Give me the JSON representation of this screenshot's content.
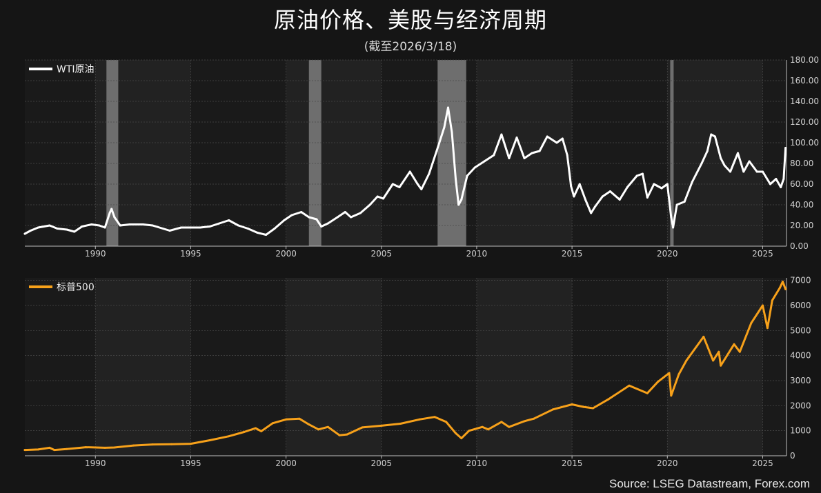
{
  "header": {
    "title": "原油价格、美股与经济周期",
    "subtitle": "(截至2026/3/18)"
  },
  "footer": {
    "source": "Source: LSEG Datastream, Forex.com"
  },
  "colors": {
    "background": "#151515",
    "band_dark": "#1a1a1a",
    "band_light": "#222222",
    "recession": "#6e6e6e",
    "wti_line": "#ffffff",
    "spx_line": "#f7a11a",
    "spx_tick": "#f7a11a"
  },
  "chart_data": [
    {
      "type": "line",
      "title": "",
      "legend_position": "top-left",
      "grid": true,
      "x_axis": {
        "ticks": [
          "1990",
          "1995",
          "2000",
          "2005",
          "2010",
          "2015",
          "2020",
          "2025"
        ],
        "range": [
          1986.3,
          2026.25
        ]
      },
      "y_axis": {
        "position": "right",
        "range": [
          0,
          180
        ],
        "ticks": [
          "0.00",
          "20.00",
          "40.00",
          "60.00",
          "80.00",
          "100.00",
          "120.00",
          "140.00",
          "160.00",
          "180.00"
        ]
      },
      "recessions": [
        [
          1990.58,
          1991.2
        ],
        [
          2001.2,
          2001.85
        ],
        [
          2007.95,
          2009.45
        ],
        [
          2020.15,
          2020.33
        ]
      ],
      "series": [
        {
          "name": "WTI原油",
          "color": "#ffffff",
          "points": [
            [
              1986.3,
              12
            ],
            [
              1986.6,
              15
            ],
            [
              1987.0,
              18
            ],
            [
              1987.6,
              20
            ],
            [
              1988.0,
              17
            ],
            [
              1988.5,
              16
            ],
            [
              1988.9,
              14
            ],
            [
              1989.3,
              19
            ],
            [
              1989.8,
              21
            ],
            [
              1990.2,
              20
            ],
            [
              1990.5,
              18
            ],
            [
              1990.75,
              32
            ],
            [
              1990.85,
              36
            ],
            [
              1991.0,
              28
            ],
            [
              1991.3,
              20
            ],
            [
              1991.8,
              21
            ],
            [
              1992.5,
              21
            ],
            [
              1993.0,
              20
            ],
            [
              1993.9,
              15
            ],
            [
              1994.5,
              18
            ],
            [
              1995.0,
              18
            ],
            [
              1995.5,
              18
            ],
            [
              1996.0,
              19
            ],
            [
              1996.5,
              22
            ],
            [
              1997.0,
              25
            ],
            [
              1997.5,
              20
            ],
            [
              1998.0,
              17
            ],
            [
              1998.5,
              13
            ],
            [
              1998.95,
              11
            ],
            [
              1999.4,
              17
            ],
            [
              1999.9,
              25
            ],
            [
              2000.3,
              30
            ],
            [
              2000.8,
              33
            ],
            [
              2001.2,
              28
            ],
            [
              2001.6,
              26
            ],
            [
              2001.85,
              19
            ],
            [
              2002.2,
              22
            ],
            [
              2002.7,
              28
            ],
            [
              2003.1,
              33
            ],
            [
              2003.4,
              28
            ],
            [
              2003.9,
              32
            ],
            [
              2004.4,
              40
            ],
            [
              2004.8,
              48
            ],
            [
              2005.1,
              46
            ],
            [
              2005.6,
              60
            ],
            [
              2005.95,
              57
            ],
            [
              2006.5,
              72
            ],
            [
              2006.9,
              60
            ],
            [
              2007.1,
              55
            ],
            [
              2007.5,
              70
            ],
            [
              2007.9,
              92
            ],
            [
              2008.3,
              115
            ],
            [
              2008.5,
              134
            ],
            [
              2008.7,
              110
            ],
            [
              2008.9,
              65
            ],
            [
              2009.05,
              40
            ],
            [
              2009.2,
              45
            ],
            [
              2009.5,
              68
            ],
            [
              2009.9,
              76
            ],
            [
              2010.4,
              82
            ],
            [
              2010.9,
              88
            ],
            [
              2011.3,
              108
            ],
            [
              2011.7,
              85
            ],
            [
              2012.1,
              105
            ],
            [
              2012.5,
              85
            ],
            [
              2012.9,
              90
            ],
            [
              2013.3,
              92
            ],
            [
              2013.7,
              106
            ],
            [
              2014.2,
              100
            ],
            [
              2014.5,
              104
            ],
            [
              2014.75,
              88
            ],
            [
              2014.95,
              58
            ],
            [
              2015.1,
              48
            ],
            [
              2015.4,
              60
            ],
            [
              2015.7,
              45
            ],
            [
              2016.0,
              32
            ],
            [
              2016.2,
              38
            ],
            [
              2016.6,
              48
            ],
            [
              2017.0,
              53
            ],
            [
              2017.5,
              45
            ],
            [
              2017.9,
              57
            ],
            [
              2018.4,
              68
            ],
            [
              2018.7,
              70
            ],
            [
              2018.95,
              47
            ],
            [
              2019.3,
              60
            ],
            [
              2019.7,
              56
            ],
            [
              2020.0,
              60
            ],
            [
              2020.2,
              28
            ],
            [
              2020.3,
              18
            ],
            [
              2020.5,
              40
            ],
            [
              2020.9,
              43
            ],
            [
              2021.3,
              62
            ],
            [
              2021.8,
              80
            ],
            [
              2022.1,
              92
            ],
            [
              2022.3,
              108
            ],
            [
              2022.5,
              106
            ],
            [
              2022.8,
              85
            ],
            [
              2023.0,
              78
            ],
            [
              2023.3,
              72
            ],
            [
              2023.7,
              90
            ],
            [
              2024.0,
              72
            ],
            [
              2024.3,
              82
            ],
            [
              2024.7,
              72
            ],
            [
              2025.0,
              72
            ],
            [
              2025.4,
              60
            ],
            [
              2025.7,
              65
            ],
            [
              2025.95,
              57
            ],
            [
              2026.1,
              65
            ],
            [
              2026.2,
              95
            ]
          ]
        }
      ]
    },
    {
      "type": "line",
      "title": "",
      "legend_position": "top-left",
      "grid": true,
      "x_axis": {
        "ticks": [
          "1990",
          "1995",
          "2000",
          "2005",
          "2010",
          "2015",
          "2020",
          "2025"
        ],
        "range": [
          1986.3,
          2026.25
        ]
      },
      "y_axis": {
        "position": "right",
        "range": [
          0,
          7100
        ],
        "ticks": [
          "0",
          "1000",
          "2000",
          "3000",
          "4000",
          "5000",
          "6000",
          "7000"
        ]
      },
      "series": [
        {
          "name": "标普500",
          "color": "#f7a11a",
          "points": [
            [
              1986.3,
              230
            ],
            [
              1987.0,
              250
            ],
            [
              1987.6,
              320
            ],
            [
              1987.85,
              230
            ],
            [
              1988.5,
              270
            ],
            [
              1989.5,
              340
            ],
            [
              1990.5,
              320
            ],
            [
              1991.0,
              330
            ],
            [
              1992.0,
              410
            ],
            [
              1993.0,
              450
            ],
            [
              1994.0,
              460
            ],
            [
              1995.0,
              480
            ],
            [
              1996.0,
              620
            ],
            [
              1997.0,
              780
            ],
            [
              1997.8,
              950
            ],
            [
              1998.4,
              1100
            ],
            [
              1998.7,
              980
            ],
            [
              1999.3,
              1300
            ],
            [
              2000.0,
              1450
            ],
            [
              2000.7,
              1480
            ],
            [
              2001.2,
              1250
            ],
            [
              2001.7,
              1050
            ],
            [
              2002.2,
              1150
            ],
            [
              2002.8,
              820
            ],
            [
              2003.2,
              850
            ],
            [
              2004.0,
              1130
            ],
            [
              2005.0,
              1200
            ],
            [
              2006.0,
              1280
            ],
            [
              2007.0,
              1450
            ],
            [
              2007.8,
              1550
            ],
            [
              2008.4,
              1350
            ],
            [
              2008.9,
              900
            ],
            [
              2009.2,
              700
            ],
            [
              2009.6,
              1000
            ],
            [
              2010.3,
              1150
            ],
            [
              2010.6,
              1050
            ],
            [
              2011.3,
              1350
            ],
            [
              2011.7,
              1150
            ],
            [
              2012.5,
              1380
            ],
            [
              2013.0,
              1480
            ],
            [
              2014.0,
              1850
            ],
            [
              2015.0,
              2050
            ],
            [
              2015.6,
              1950
            ],
            [
              2016.1,
              1900
            ],
            [
              2016.9,
              2250
            ],
            [
              2018.0,
              2800
            ],
            [
              2018.95,
              2500
            ],
            [
              2019.5,
              2950
            ],
            [
              2020.1,
              3300
            ],
            [
              2020.2,
              2400
            ],
            [
              2020.6,
              3250
            ],
            [
              2021.0,
              3800
            ],
            [
              2021.9,
              4750
            ],
            [
              2022.4,
              3800
            ],
            [
              2022.7,
              4150
            ],
            [
              2022.8,
              3600
            ],
            [
              2023.5,
              4450
            ],
            [
              2023.8,
              4150
            ],
            [
              2024.4,
              5300
            ],
            [
              2025.0,
              6000
            ],
            [
              2025.25,
              5100
            ],
            [
              2025.5,
              6200
            ],
            [
              2025.9,
              6700
            ],
            [
              2026.05,
              6950
            ],
            [
              2026.2,
              6650
            ]
          ]
        }
      ]
    }
  ]
}
